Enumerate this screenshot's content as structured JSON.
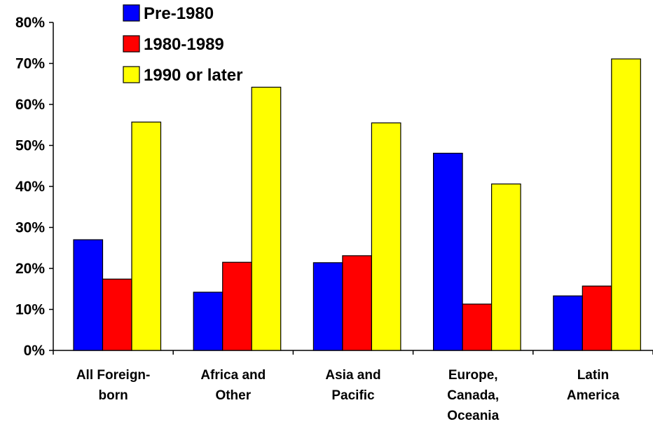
{
  "chart_data": {
    "type": "bar",
    "categories": [
      [
        "All Foreign-",
        "born"
      ],
      [
        "Africa and",
        "Other"
      ],
      [
        "Asia and",
        "Pacific"
      ],
      [
        "Europe,",
        "Canada,",
        "Oceania"
      ],
      [
        "Latin",
        "America"
      ]
    ],
    "series": [
      {
        "name": "Pre-1980",
        "color": "#0000FF",
        "values": [
          27.0,
          14.2,
          21.4,
          48.1,
          13.3
        ]
      },
      {
        "name": "1980-1989",
        "color": "#FF0000",
        "values": [
          17.4,
          21.5,
          23.1,
          11.3,
          15.7
        ]
      },
      {
        "name": "1990 or later",
        "color": "#FFFF00",
        "values": [
          55.7,
          64.2,
          55.5,
          40.6,
          71.1
        ]
      }
    ],
    "y_ticks": [
      "0%",
      "10%",
      "20%",
      "30%",
      "40%",
      "50%",
      "60%",
      "70%",
      "80%"
    ],
    "ylim": [
      0,
      80
    ],
    "grid": false,
    "legend_position": "top-left",
    "title": "",
    "xlabel": "",
    "ylabel": ""
  }
}
